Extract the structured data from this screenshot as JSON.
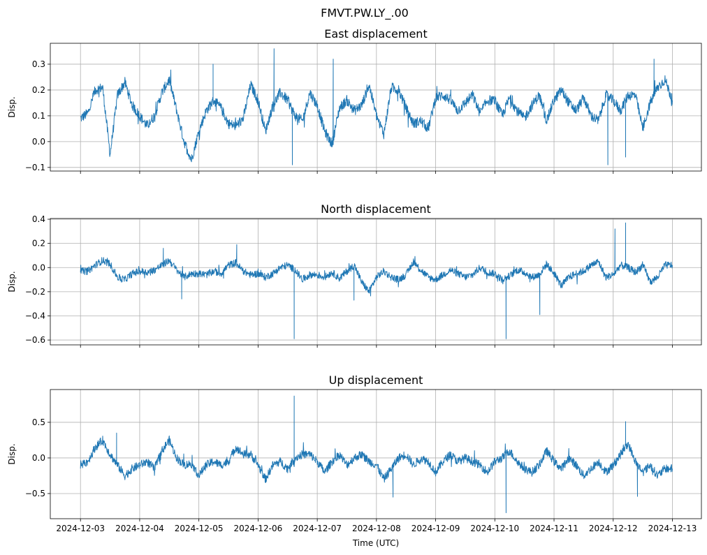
{
  "chart_data": {
    "type": "line",
    "suptitle": "FMVT.PW.LY_.00",
    "xlabel": "Time (UTC)",
    "x_tick_labels": [
      "2024-12-03",
      "2024-12-04",
      "2024-12-05",
      "2024-12-06",
      "2024-12-07",
      "2024-12-08",
      "2024-12-09",
      "2024-12-10",
      "2024-12-11",
      "2024-12-12",
      "2024-12-13"
    ],
    "x_unit": "days since 2024-12-03 00:00 UTC",
    "x_range": [
      -0.51,
      10.49
    ],
    "sample_step_days": 0.125,
    "grid": true,
    "line_color": "#1f77b4",
    "panels": [
      {
        "title": "East displacement",
        "ylabel": "Disp.",
        "ylim": [
          -0.114,
          0.381
        ],
        "y_ticks": [
          -0.1,
          0.0,
          0.1,
          0.2,
          0.3
        ],
        "y_tick_labels": [
          "−0.1",
          "0.0",
          "0.1",
          "0.2",
          "0.3"
        ],
        "noise": 0.02,
        "values": [
          0.09,
          0.11,
          0.2,
          0.21,
          -0.05,
          0.18,
          0.23,
          0.14,
          0.1,
          0.06,
          0.1,
          0.19,
          0.24,
          0.12,
          0.0,
          -0.07,
          0.04,
          0.12,
          0.16,
          0.13,
          0.07,
          0.06,
          0.09,
          0.22,
          0.16,
          0.04,
          0.14,
          0.19,
          0.16,
          0.1,
          0.08,
          0.19,
          0.14,
          0.04,
          -0.01,
          0.13,
          0.16,
          0.12,
          0.14,
          0.22,
          0.1,
          0.03,
          0.21,
          0.2,
          0.13,
          0.07,
          0.08,
          0.05,
          0.17,
          0.18,
          0.16,
          0.12,
          0.15,
          0.18,
          0.11,
          0.16,
          0.16,
          0.1,
          0.17,
          0.12,
          0.09,
          0.14,
          0.18,
          0.08,
          0.16,
          0.2,
          0.15,
          0.12,
          0.17,
          0.1,
          0.08,
          0.18,
          0.16,
          0.12,
          0.18,
          0.18,
          0.05,
          0.15,
          0.21,
          0.24,
          0.16
        ],
        "spikes": [
          [
            2.24,
            0.3
          ],
          [
            3.27,
            0.36
          ],
          [
            3.58,
            -0.09
          ],
          [
            4.27,
            0.32
          ],
          [
            8.91,
            -0.09
          ],
          [
            9.21,
            -0.06
          ],
          [
            9.69,
            0.32
          ]
        ]
      },
      {
        "title": "North displacement",
        "ylabel": "Disp.",
        "ylim": [
          -0.64,
          0.406
        ],
        "y_ticks": [
          -0.6,
          -0.4,
          -0.2,
          0.0,
          0.2,
          0.4
        ],
        "y_tick_labels": [
          "−0.6",
          "−0.4",
          "−0.2",
          "0.0",
          "0.2",
          "0.4"
        ],
        "noise": 0.03,
        "values": [
          -0.03,
          -0.03,
          0.02,
          0.06,
          0.03,
          -0.08,
          -0.1,
          -0.05,
          -0.03,
          -0.04,
          -0.02,
          0.02,
          0.06,
          -0.02,
          -0.08,
          -0.05,
          -0.05,
          -0.06,
          -0.03,
          -0.05,
          0.02,
          0.04,
          -0.03,
          -0.06,
          -0.05,
          -0.08,
          -0.05,
          0.0,
          0.02,
          -0.02,
          -0.1,
          -0.06,
          -0.06,
          -0.08,
          -0.04,
          -0.09,
          -0.03,
          0.02,
          -0.12,
          -0.2,
          -0.08,
          -0.03,
          -0.08,
          -0.1,
          -0.06,
          0.05,
          -0.02,
          -0.08,
          -0.1,
          -0.06,
          -0.02,
          -0.05,
          -0.08,
          -0.06,
          0.0,
          -0.04,
          -0.05,
          -0.1,
          -0.07,
          -0.02,
          -0.04,
          -0.08,
          -0.06,
          0.03,
          -0.05,
          -0.15,
          -0.08,
          -0.05,
          -0.03,
          0.02,
          0.05,
          -0.08,
          -0.06,
          0.02,
          0.0,
          -0.04,
          0.02,
          -0.12,
          -0.08,
          0.02,
          0.02
        ],
        "spikes": [
          [
            1.4,
            0.16
          ],
          [
            1.71,
            -0.26
          ],
          [
            2.64,
            0.19
          ],
          [
            3.61,
            -0.59
          ],
          [
            4.62,
            -0.27
          ],
          [
            7.19,
            -0.59
          ],
          [
            7.76,
            -0.39
          ],
          [
            9.03,
            0.32
          ],
          [
            9.21,
            0.37
          ]
        ]
      },
      {
        "title": "Up displacement",
        "ylabel": "Disp.",
        "ylim": [
          -0.853,
          0.96
        ],
        "y_ticks": [
          -0.5,
          0.0,
          0.5
        ],
        "y_tick_labels": [
          "−0.5",
          "0.0",
          "0.5"
        ],
        "noise": 0.06,
        "values": [
          -0.1,
          -0.05,
          0.15,
          0.25,
          0.05,
          -0.1,
          -0.25,
          -0.15,
          -0.1,
          -0.05,
          -0.15,
          0.1,
          0.25,
          0.0,
          -0.1,
          -0.08,
          -0.25,
          -0.1,
          -0.05,
          -0.1,
          -0.05,
          0.15,
          0.05,
          0.05,
          -0.1,
          -0.3,
          -0.1,
          -0.05,
          -0.15,
          0.0,
          0.05,
          0.05,
          -0.05,
          -0.2,
          -0.05,
          0.05,
          -0.1,
          0.0,
          0.05,
          -0.05,
          -0.1,
          -0.3,
          -0.15,
          0.0,
          0.05,
          -0.1,
          0.0,
          -0.05,
          -0.2,
          -0.05,
          0.05,
          -0.05,
          0.0,
          -0.05,
          -0.1,
          -0.2,
          -0.05,
          0.0,
          0.1,
          -0.05,
          -0.15,
          -0.2,
          -0.1,
          0.1,
          -0.05,
          -0.15,
          0.0,
          -0.1,
          -0.25,
          -0.15,
          -0.05,
          -0.2,
          -0.1,
          0.05,
          0.2,
          -0.05,
          -0.2,
          -0.1,
          -0.25,
          -0.15,
          -0.15
        ],
        "spikes": [
          [
            0.61,
            0.35
          ],
          [
            3.61,
            0.87
          ],
          [
            5.28,
            -0.55
          ],
          [
            7.19,
            -0.77
          ],
          [
            9.21,
            0.51
          ],
          [
            9.41,
            -0.54
          ]
        ]
      }
    ]
  }
}
